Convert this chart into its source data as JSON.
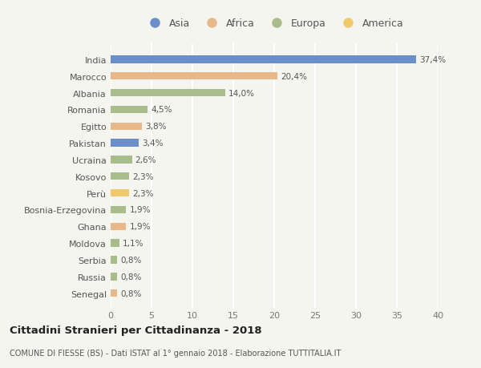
{
  "categories": [
    "India",
    "Marocco",
    "Albania",
    "Romania",
    "Egitto",
    "Pakistan",
    "Ucraina",
    "Kosovo",
    "Perù",
    "Bosnia-Erzegovina",
    "Ghana",
    "Moldova",
    "Serbia",
    "Russia",
    "Senegal"
  ],
  "values": [
    37.4,
    20.4,
    14.0,
    4.5,
    3.8,
    3.4,
    2.6,
    2.3,
    2.3,
    1.9,
    1.9,
    1.1,
    0.8,
    0.8,
    0.8
  ],
  "labels": [
    "37,4%",
    "20,4%",
    "14,0%",
    "4,5%",
    "3,8%",
    "3,4%",
    "2,6%",
    "2,3%",
    "2,3%",
    "1,9%",
    "1,9%",
    "1,1%",
    "0,8%",
    "0,8%",
    "0,8%"
  ],
  "colors": [
    "#6b8fc9",
    "#e8b88a",
    "#a8bc8c",
    "#a8bc8c",
    "#e8b88a",
    "#6b8fc9",
    "#a8bc8c",
    "#a8bc8c",
    "#f0c96e",
    "#a8bc8c",
    "#e8b88a",
    "#a8bc8c",
    "#a8bc8c",
    "#a8bc8c",
    "#e8b88a"
  ],
  "legend_labels": [
    "Asia",
    "Africa",
    "Europa",
    "America"
  ],
  "legend_colors": [
    "#6b8fc9",
    "#e8b88a",
    "#a8bc8c",
    "#f0c96e"
  ],
  "title": "Cittadini Stranieri per Cittadinanza - 2018",
  "subtitle": "COMUNE DI FIESSE (BS) - Dati ISTAT al 1° gennaio 2018 - Elaborazione TUTTITALIA.IT",
  "xlim": [
    0,
    40
  ],
  "xticks": [
    0,
    5,
    10,
    15,
    20,
    25,
    30,
    35,
    40
  ],
  "background_color": "#f5f5f0",
  "grid_color": "#ffffff",
  "bar_height": 0.45
}
